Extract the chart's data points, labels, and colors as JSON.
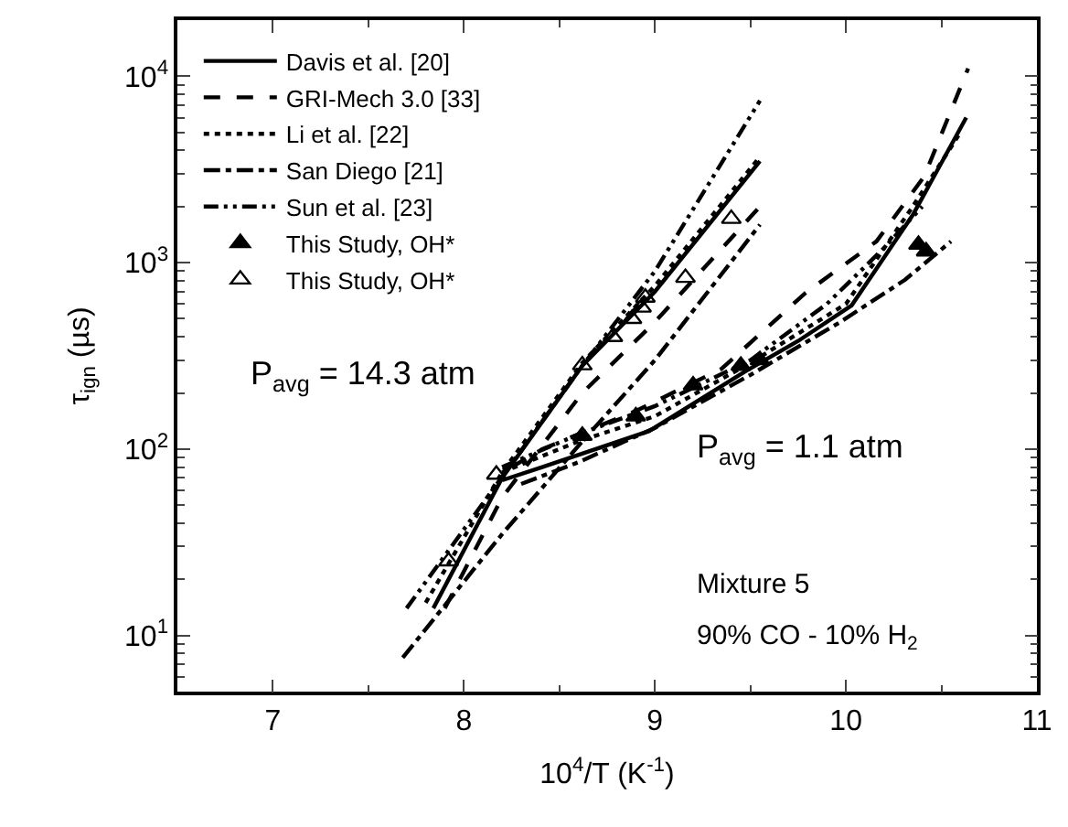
{
  "chart_data": {
    "type": "line",
    "xlabel": "10$^{4}$/T (K$^{-1}$)",
    "ylabel": "τ$_{ign}$ (µs)",
    "xlim": [
      6.5,
      11
    ],
    "xticks": [
      7,
      8,
      9,
      10,
      11
    ],
    "ylim": [
      5,
      20000
    ],
    "yticks": [
      {
        "value": 10,
        "label": "10$^{1}$"
      },
      {
        "value": 100,
        "label": "10$^{2}$"
      },
      {
        "value": 1000,
        "label": "10$^{3}$"
      },
      {
        "value": 10000,
        "label": "10$^{4}$"
      }
    ],
    "log": "y",
    "legend": "top left",
    "series": [
      {
        "name": "This Study, OH*",
        "type": "scatter",
        "marker": "triangle",
        "color": "#000000",
        "x": [
          8.62,
          8.9,
          9.2,
          9.45,
          9.55,
          10.38,
          10.42
        ],
        "values": [
          118,
          150,
          220,
          280,
          300,
          1250,
          1150
        ]
      },
      {
        "name": "This Study, OH*",
        "type": "scatter",
        "marker": "triangle-open",
        "color": "#000000",
        "x": [
          7.92,
          8.17,
          8.62,
          8.78,
          8.88,
          8.93,
          8.95,
          9.16,
          9.4
        ],
        "values": [
          25,
          73,
          282,
          400,
          500,
          575,
          650,
          830,
          1720
        ]
      },
      {
        "name": "Davis et al. [20]",
        "line_style": "solid",
        "color": "#000000",
        "x": [
          7.84,
          8.2,
          8.62,
          9.0,
          9.55
        ],
        "values": [
          14,
          70,
          280,
          700,
          3500
        ]
      },
      {
        "name": "GRI-Mech 3.0 [33]",
        "line_style": "dashed",
        "color": "#000000",
        "x": [
          7.9,
          8.2,
          8.62,
          9.0,
          9.55
        ],
        "values": [
          14,
          55,
          200,
          480,
          2000
        ]
      },
      {
        "name": "Li et al. [22]",
        "line_style": "dotted",
        "color": "#000000",
        "x": [
          7.8,
          8.2,
          8.62,
          9.0,
          9.55
        ],
        "values": [
          15,
          75,
          290,
          750,
          3700
        ]
      },
      {
        "name": "San Diego [21]",
        "line_style": "dashdot",
        "color": "#000000",
        "x": [
          7.68,
          8.2,
          8.62,
          9.0,
          9.55
        ],
        "values": [
          7.6,
          35,
          110,
          300,
          1600
        ]
      },
      {
        "name": "Sun et al. [23]",
        "line_style": "dashdotdot",
        "color": "#000000",
        "x": [
          7.7,
          8.28,
          8.62,
          9.0,
          9.55
        ],
        "values": [
          14,
          92,
          280,
          900,
          7400
        ]
      },
      {
        "line_style": "solid",
        "color": "#000000",
        "x": [
          8.2,
          8.41,
          8.97,
          9.47,
          9.75,
          10.03,
          10.35,
          10.63
        ],
        "values": [
          68,
          80,
          125,
          260,
          380,
          590,
          1800,
          6000
        ]
      },
      {
        "line_style": "dashed",
        "color": "#000000",
        "x": [
          8.25,
          8.41,
          8.9,
          9.35,
          9.79,
          10.16,
          10.41,
          10.64
        ],
        "values": [
          80,
          100,
          160,
          270,
          690,
          1300,
          2900,
          11000
        ]
      },
      {
        "line_style": "dotted",
        "color": "#000000",
        "x": [
          8.2,
          8.6,
          9.0,
          9.5,
          10.0,
          10.35,
          10.6
        ],
        "values": [
          75,
          110,
          150,
          290,
          600,
          2000,
          5000
        ]
      },
      {
        "line_style": "dashdot",
        "color": "#000000",
        "x": [
          8.3,
          8.6,
          9.0,
          9.5,
          9.97,
          10.31,
          10.55
        ],
        "values": [
          65,
          85,
          130,
          250,
          480,
          810,
          1300
        ]
      },
      {
        "line_style": "dashdotdot",
        "color": "#000000",
        "x": [
          8.2,
          8.6,
          9.0,
          9.5,
          9.9,
          10.2,
          10.4
        ],
        "values": [
          80,
          120,
          170,
          300,
          600,
          1200,
          2000
        ]
      }
    ],
    "annotations": [
      "P$_{avg}$ = 14.3 atm",
      "P$_{avg}$ = 1.1 atm",
      "Mixture 5",
      "90% CO - 10% H$_{2}$"
    ]
  }
}
